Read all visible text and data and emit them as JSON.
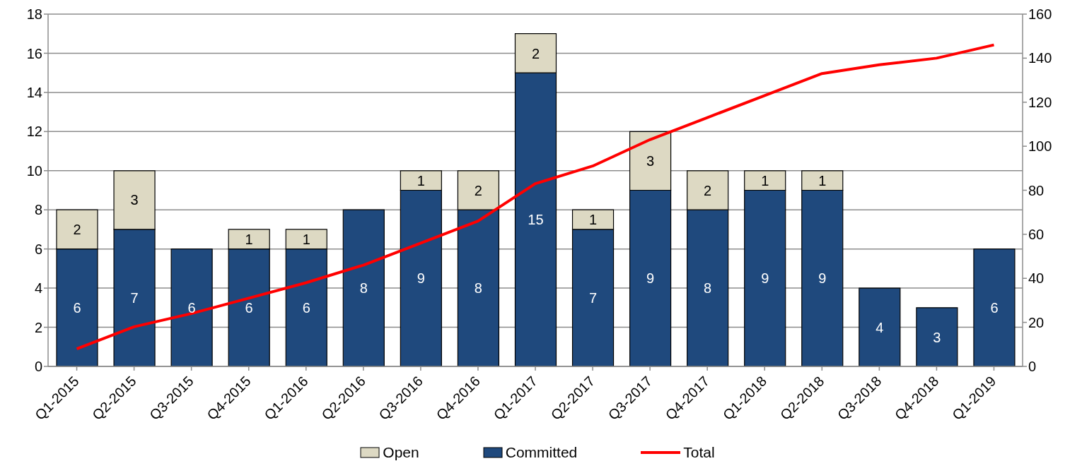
{
  "chart_data": {
    "type": "bar",
    "stacked": true,
    "categories": [
      "Q1-2015",
      "Q2-2015",
      "Q3-2015",
      "Q4-2015",
      "Q1-2016",
      "Q2-2016",
      "Q3-2016",
      "Q4-2016",
      "Q1-2017",
      "Q2-2017",
      "Q3-2017",
      "Q4-2017",
      "Q1-2018",
      "Q2-2018",
      "Q3-2018",
      "Q4-2018",
      "Q1-2019"
    ],
    "series": [
      {
        "name": "Committed",
        "color": "#1f497d",
        "values": [
          6,
          7,
          6,
          6,
          6,
          8,
          9,
          8,
          15,
          7,
          9,
          8,
          9,
          9,
          4,
          3,
          6
        ],
        "value_labels": [
          "6",
          "7",
          "6",
          "6",
          "6",
          "8",
          "9",
          "8",
          "15",
          "7",
          "9",
          "8",
          "9",
          "9",
          "4",
          "3",
          "6"
        ]
      },
      {
        "name": "Open",
        "color": "#ddd9c3",
        "values": [
          2,
          3,
          null,
          1,
          1,
          null,
          1,
          2,
          2,
          1,
          3,
          2,
          1,
          1,
          null,
          null,
          null
        ],
        "value_labels": [
          "2",
          "3",
          null,
          "1",
          "1",
          null,
          "1",
          "2",
          "2",
          "1",
          "3",
          "2",
          "1",
          "1",
          null,
          null,
          null
        ]
      },
      {
        "name": "Total",
        "type": "line",
        "axis": "y2",
        "color": "#ff0000",
        "values": [
          8,
          18,
          24,
          31,
          38,
          46,
          56,
          66,
          83,
          91,
          103,
          113,
          123,
          133,
          137,
          140,
          146
        ]
      }
    ],
    "ylim": [
      0,
      18
    ],
    "yticks": [
      0,
      2,
      4,
      6,
      8,
      10,
      12,
      14,
      16,
      18
    ],
    "y2lim": [
      0,
      160
    ],
    "y2ticks": [
      0,
      20,
      40,
      60,
      80,
      100,
      120,
      140,
      160
    ],
    "grid": "y",
    "legend": "bottom",
    "marker": "none"
  }
}
